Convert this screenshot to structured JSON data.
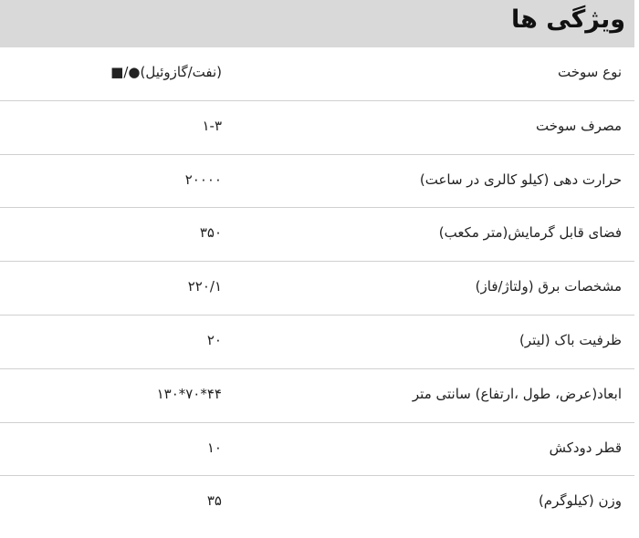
{
  "title": "ویژگی ها",
  "rows": [
    {
      "label": "نوع سوخت",
      "value": "(نفت/گازوئیل)●/■"
    },
    {
      "label": "مصرف سوخت",
      "value": "۱-۳"
    },
    {
      "label": "حرارت دهی (کیلو کالری در ساعت)",
      "value": "۲۰۰۰۰"
    },
    {
      "label": "فضای قابل گرمایش(متر مکعب)",
      "value": "۳۵۰"
    },
    {
      "label": "مشخصات برق (ولتاژ/فاز)",
      "value": "۲۲۰/۱"
    },
    {
      "label": "ظرفیت باک (لیتر)",
      "value": "۲۰"
    },
    {
      "label": "ابعاد(عرض، طول ،ارتفاع) سانتی متر",
      "value": "۴۴*۷۰*۱۳۰"
    },
    {
      "label": "قطر دودکش",
      "value": "۱۰"
    },
    {
      "label": "وزن (کیلوگرم)",
      "value": "۳۵"
    }
  ]
}
